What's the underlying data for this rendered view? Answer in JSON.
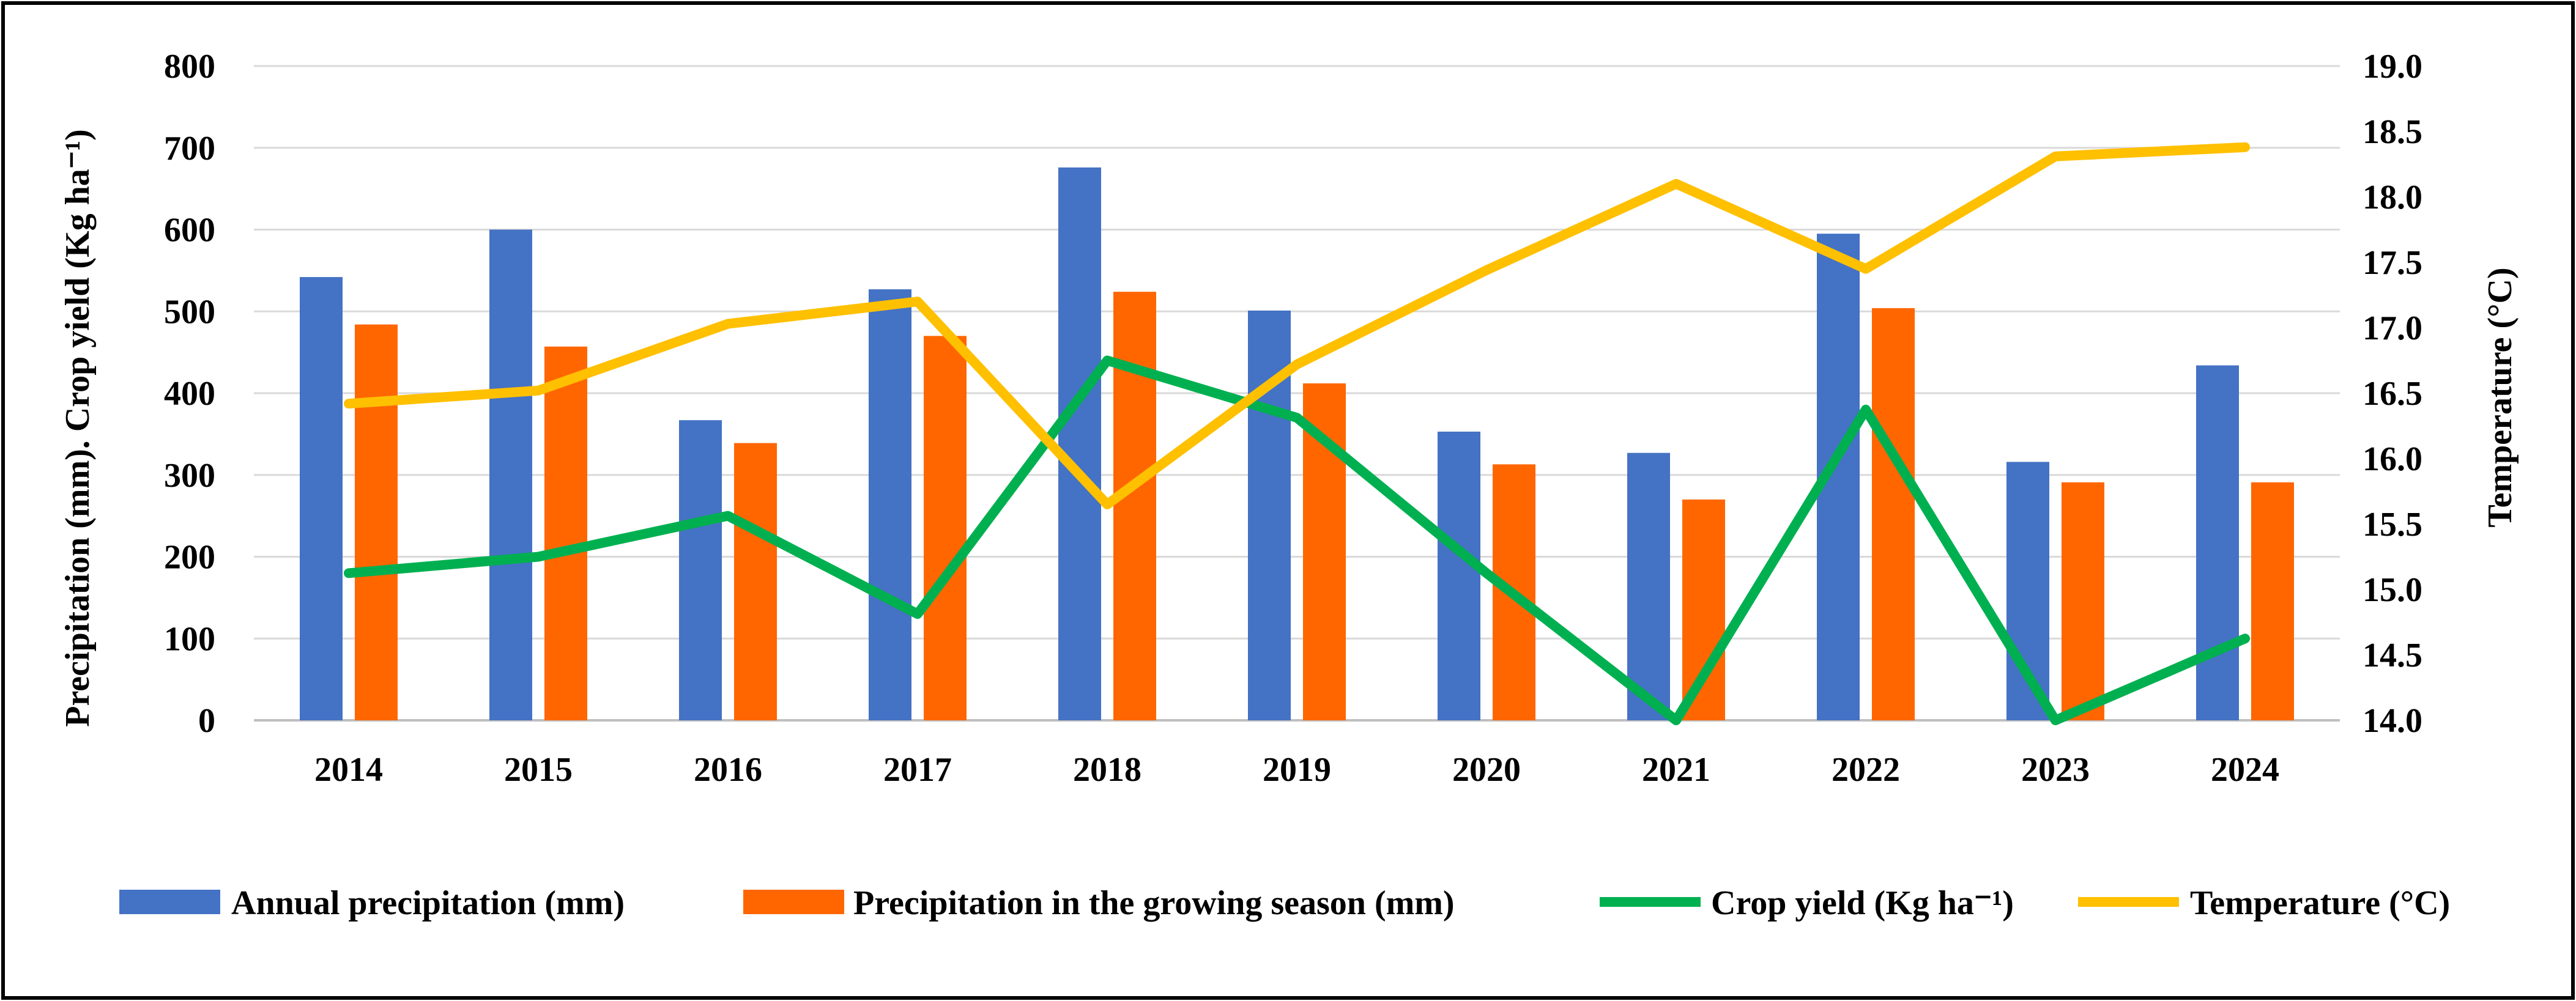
{
  "chart_data": {
    "type": "bar",
    "title": "",
    "categories": [
      "2014",
      "2015",
      "2016",
      "2017",
      "2018",
      "2019",
      "2020",
      "2021",
      "2022",
      "2023",
      "2024"
    ],
    "series": [
      {
        "name": "Annual  precipitation (mm)",
        "type": "bar",
        "axis": "left",
        "color": "#4472C4",
        "values": [
          542,
          600,
          367,
          527,
          676,
          501,
          353,
          327,
          595,
          316,
          434
        ]
      },
      {
        "name": "Precipitation in the growing season (mm)",
        "type": "bar",
        "axis": "left",
        "color": "#FF6600",
        "values": [
          484,
          457,
          339,
          470,
          524,
          412,
          313,
          270,
          504,
          291,
          291
        ]
      },
      {
        "name": "Crop yield (Kg ha⁻¹)",
        "type": "line",
        "axis": "left",
        "color": "#00B050",
        "values": [
          180,
          200,
          250,
          130,
          440,
          370,
          180,
          0,
          380,
          0,
          100
        ]
      },
      {
        "name": "Temperature  (°C)",
        "type": "line",
        "axis": "right",
        "color": "#FFC000",
        "values": [
          16.42,
          16.52,
          17.03,
          17.2,
          15.65,
          16.72,
          17.44,
          18.1,
          17.45,
          18.31,
          18.38
        ]
      }
    ],
    "y_left": {
      "label": "Precipitation (mm). Crop yield (Kg ha⁻¹)",
      "ylim": [
        0,
        800
      ],
      "ticks": [
        "0",
        "100",
        "200",
        "300",
        "400",
        "500",
        "600",
        "700",
        "800"
      ]
    },
    "y_right": {
      "label": "Temperature  (°C)",
      "ylim": [
        14.0,
        19.0
      ],
      "ticks": [
        "14.0",
        "14.5",
        "15.0",
        "15.5",
        "16.0",
        "16.5",
        "17.0",
        "17.5",
        "18.0",
        "18.5",
        "19.0"
      ]
    },
    "xlabel": "",
    "grid": true,
    "legend_position": "bottom"
  }
}
